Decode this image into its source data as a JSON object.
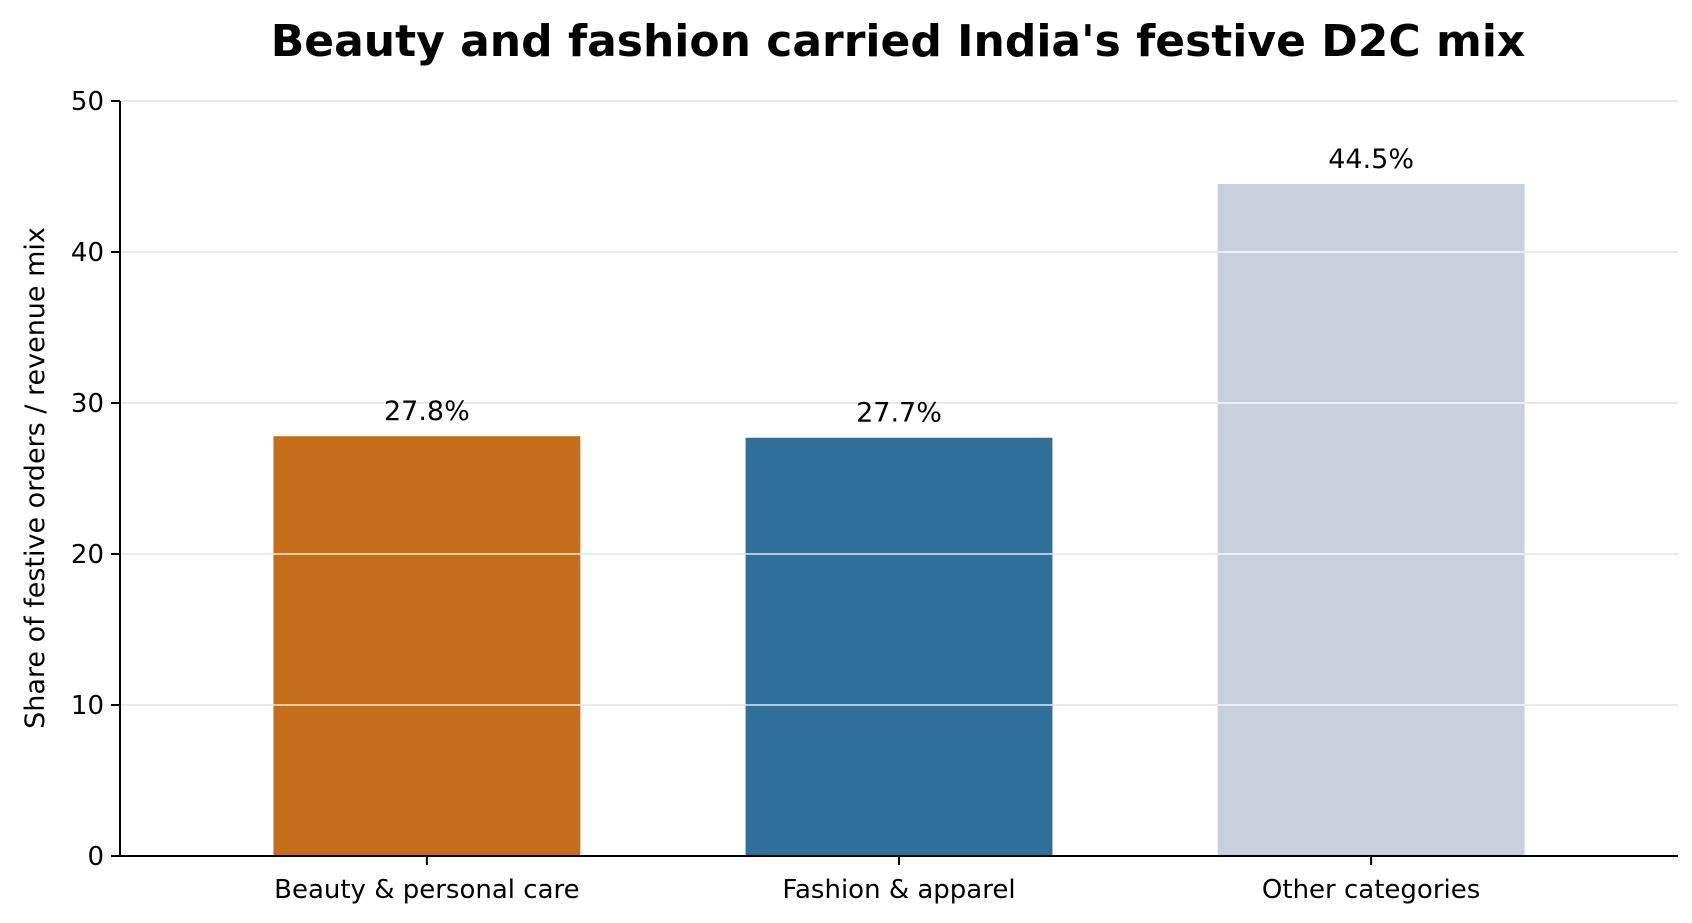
{
  "chart_data": {
    "type": "bar",
    "title": "Beauty and fashion carried India's festive D2C mix",
    "xlabel": "",
    "ylabel": "Share of festive orders / revenue mix",
    "categories": [
      "Beauty & personal care",
      "Fashion & apparel",
      "Other categories"
    ],
    "values": [
      27.8,
      27.7,
      44.5
    ],
    "value_labels": [
      "27.8%",
      "27.7%",
      "44.5%"
    ],
    "colors": [
      "#C46D1A",
      "#306F98",
      "#C7D0DC"
    ],
    "ylim": [
      0,
      50
    ],
    "yticks": [
      0,
      10,
      20,
      30,
      40,
      50
    ],
    "ytick_labels": [
      "0",
      "10",
      "20",
      "30",
      "40",
      "50"
    ],
    "grid": "horizontal",
    "grid_color": "#E3E3E3",
    "axis_color": "#000000"
  }
}
